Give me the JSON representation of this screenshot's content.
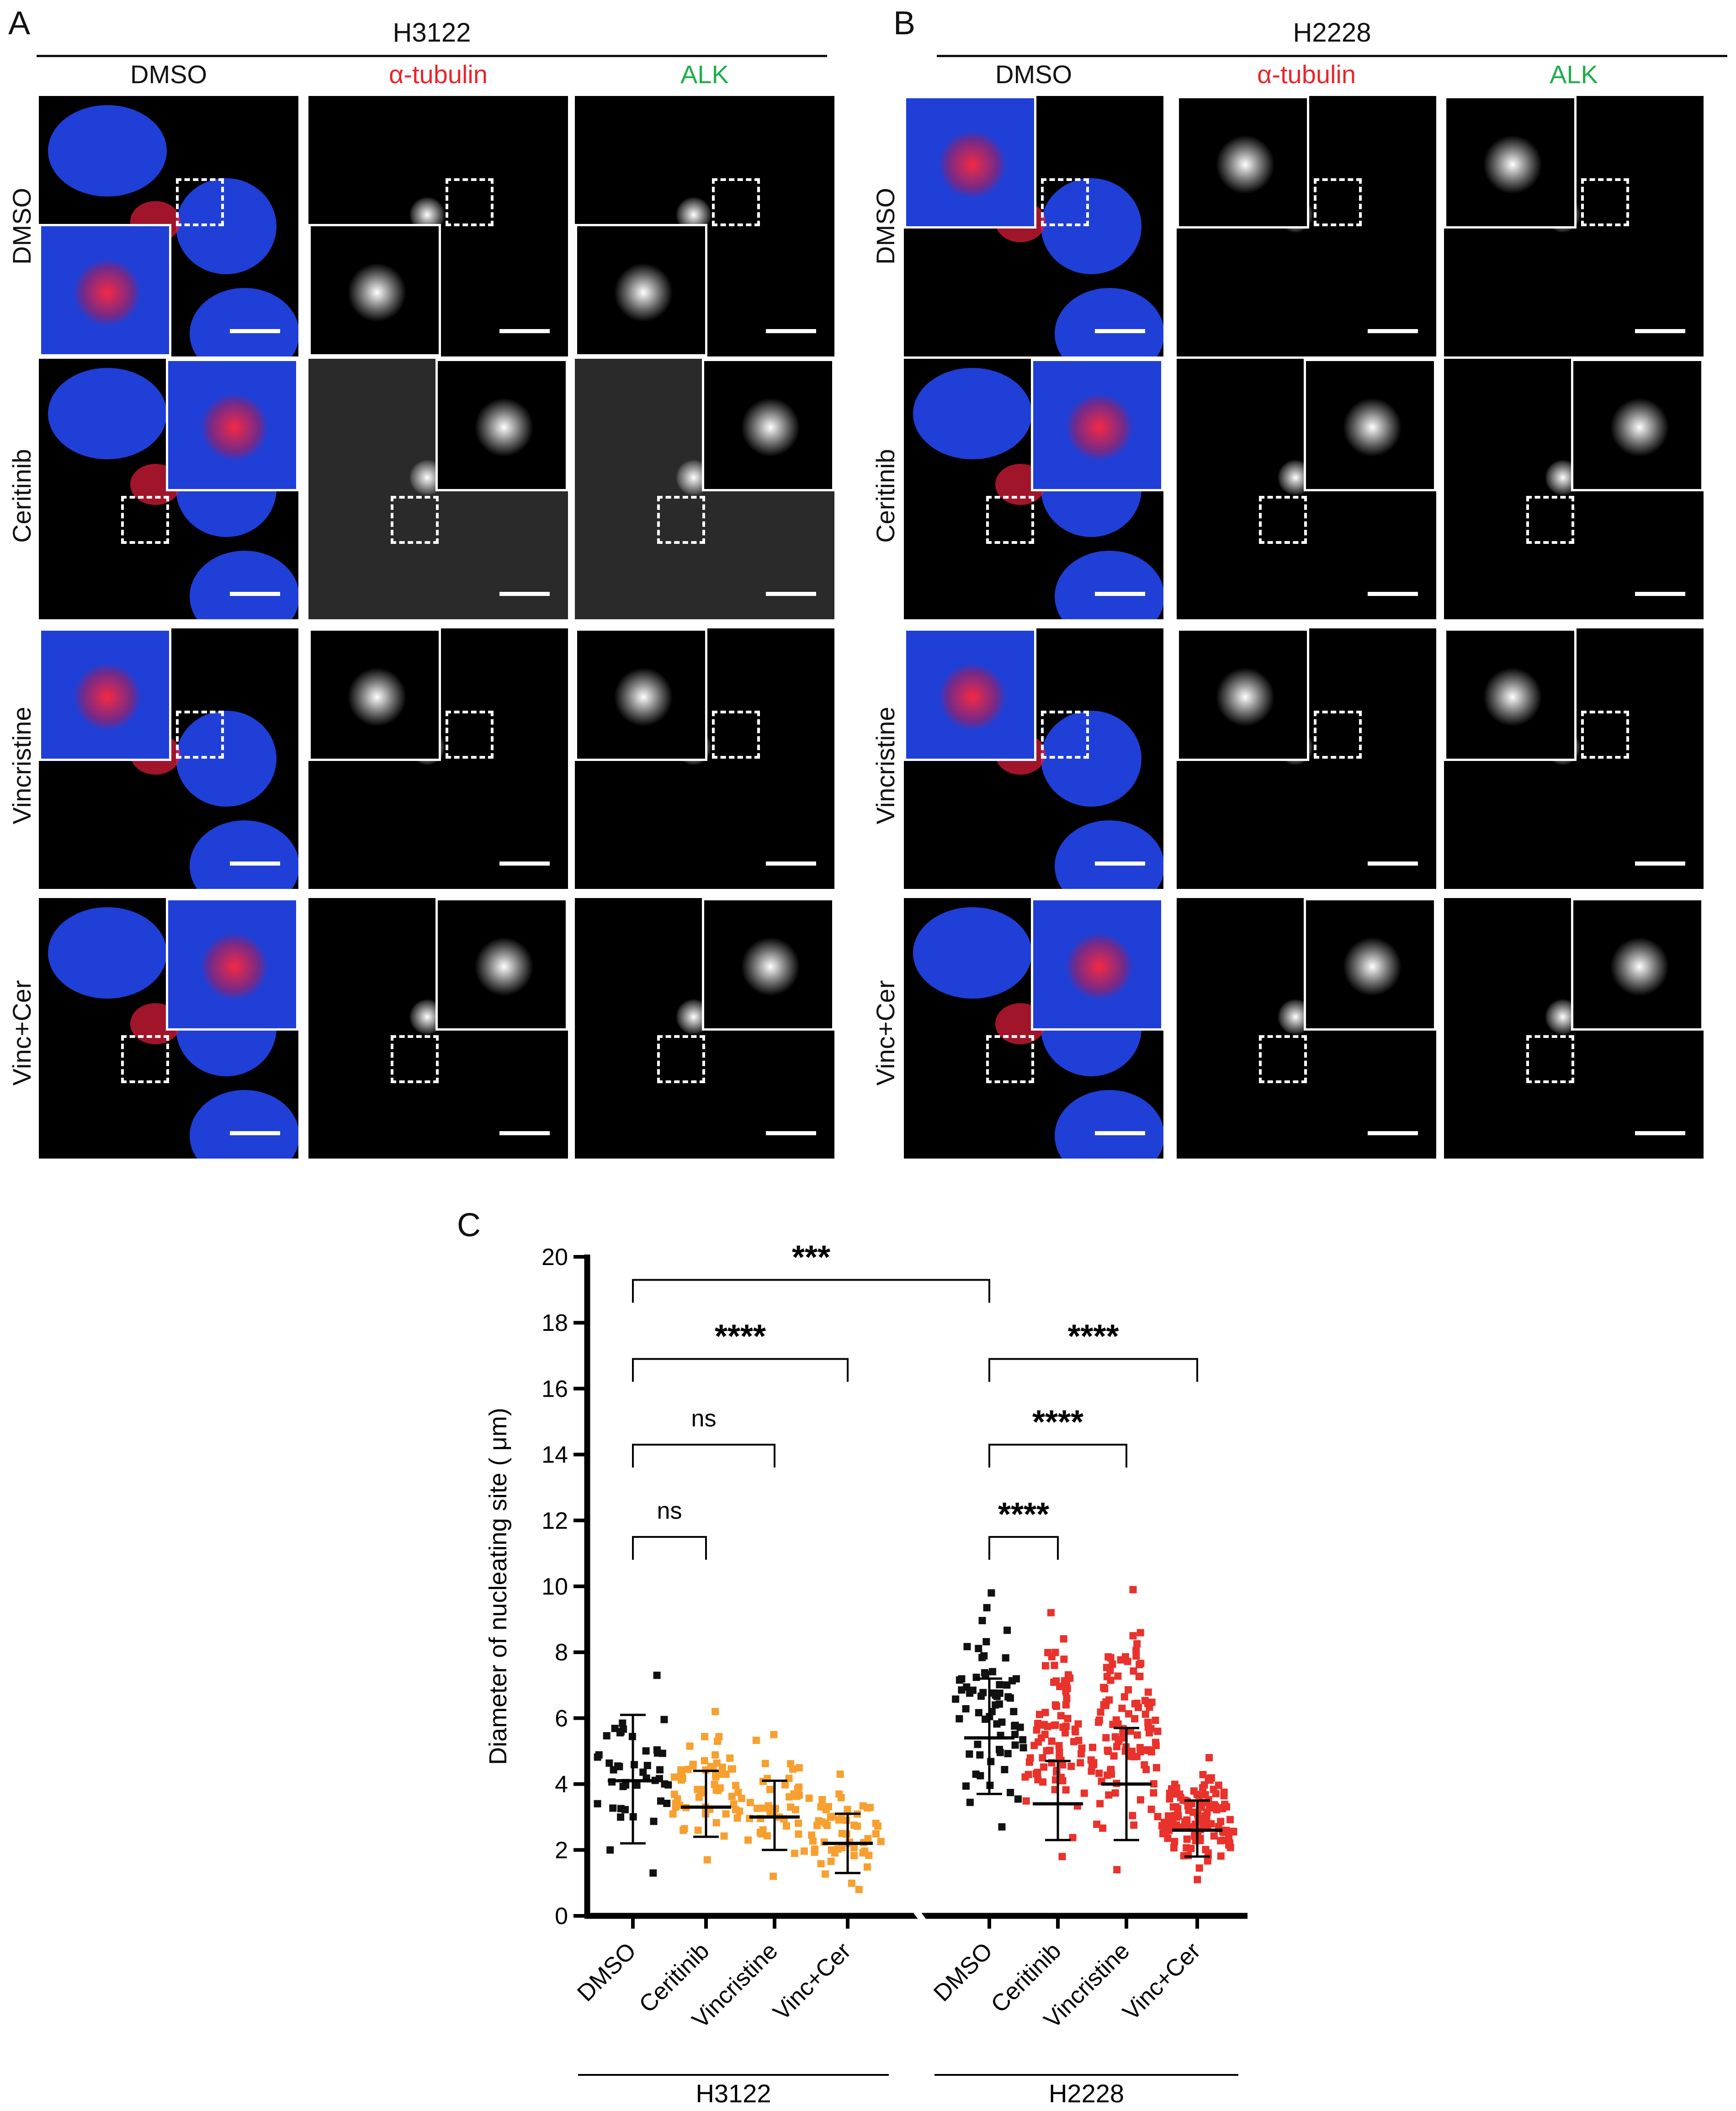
{
  "panels": {
    "A": {
      "letter": "A",
      "cell_line": "H3122",
      "columns": [
        "DMSO",
        "α-tubulin",
        "ALK"
      ],
      "rows": [
        "DMSO",
        "Ceritinib",
        "Vincristine",
        "Vinc+Cer"
      ]
    },
    "B": {
      "letter": "B",
      "cell_line": "H2228",
      "columns": [
        "DMSO",
        "α-tubulin",
        "ALK"
      ],
      "rows": [
        "DMSO",
        "Ceritinib",
        "Vincristine",
        "Vinc+Cer"
      ]
    },
    "C": {
      "letter": "C"
    }
  },
  "colors": {
    "tubulin_label": "#e8262b",
    "alk_label": "#1fae4b",
    "nucleus": "#1f3fd6",
    "h3122_points": "#f7a030",
    "h2228_treated_points": "#e8322b",
    "dmso_points": "#111111"
  },
  "chart_data": {
    "type": "scatter",
    "ylabel": "Diameter of nucleating site ( μm)",
    "ylim": [
      0,
      20
    ],
    "yticks": [
      0,
      2,
      4,
      6,
      8,
      10,
      12,
      14,
      16,
      18,
      20
    ],
    "categories": [
      "DMSO",
      "Ceritinib",
      "Vincristine",
      "Vinc+Cer",
      "DMSO",
      "Ceritinib",
      "Vincristine",
      "Vinc+Cer"
    ],
    "groups": [
      {
        "label": "H3122",
        "categories": [
          0,
          1,
          2,
          3
        ]
      },
      {
        "label": "H2228",
        "categories": [
          4,
          5,
          6,
          7
        ]
      }
    ],
    "series": [
      {
        "category": "DMSO",
        "group": "H3122",
        "color": "dmso",
        "n": 45,
        "min": 1.3,
        "max": 7.3,
        "mean": 4.1,
        "sd_low": 2.2,
        "sd_high": 6.1
      },
      {
        "category": "Ceritinib",
        "group": "H3122",
        "color": "h3122",
        "n": 60,
        "min": 1.7,
        "max": 6.2,
        "mean": 3.3,
        "sd_low": 2.4,
        "sd_high": 4.4
      },
      {
        "category": "Vincristine",
        "group": "H3122",
        "color": "h3122",
        "n": 45,
        "min": 1.2,
        "max": 5.5,
        "mean": 3.0,
        "sd_low": 2.0,
        "sd_high": 4.1
      },
      {
        "category": "Vinc+Cer",
        "group": "H3122",
        "color": "h3122",
        "n": 55,
        "min": 0.8,
        "max": 4.3,
        "mean": 2.2,
        "sd_low": 1.3,
        "sd_high": 3.1
      },
      {
        "category": "DMSO",
        "group": "H2228",
        "color": "dmso",
        "n": 70,
        "min": 2.7,
        "max": 9.8,
        "mean": 5.4,
        "sd_low": 3.7,
        "sd_high": 7.2
      },
      {
        "category": "Ceritinib",
        "group": "H2228",
        "color": "h2228",
        "n": 80,
        "min": 1.8,
        "max": 9.2,
        "mean": 3.4,
        "sd_low": 2.3,
        "sd_high": 4.7
      },
      {
        "category": "Vincristine",
        "group": "H2228",
        "color": "h2228",
        "n": 110,
        "min": 1.4,
        "max": 9.9,
        "mean": 4.0,
        "sd_low": 2.3,
        "sd_high": 5.7
      },
      {
        "category": "Vinc+Cer",
        "group": "H2228",
        "color": "h2228",
        "n": 120,
        "min": 1.1,
        "max": 4.8,
        "mean": 2.6,
        "sd_low": 1.8,
        "sd_high": 3.5
      }
    ],
    "comparisons": [
      {
        "from": 0,
        "to": 4,
        "y": 19.3,
        "label": "***"
      },
      {
        "from": 0,
        "to": 3,
        "y": 16.9,
        "label": "****"
      },
      {
        "from": 0,
        "to": 2,
        "y": 14.3,
        "label": "ns"
      },
      {
        "from": 0,
        "to": 1,
        "y": 11.5,
        "label": "ns"
      },
      {
        "from": 4,
        "to": 7,
        "y": 16.9,
        "label": "****"
      },
      {
        "from": 4,
        "to": 6,
        "y": 14.3,
        "label": "****"
      },
      {
        "from": 4,
        "to": 5,
        "y": 11.5,
        "label": "****"
      }
    ]
  }
}
